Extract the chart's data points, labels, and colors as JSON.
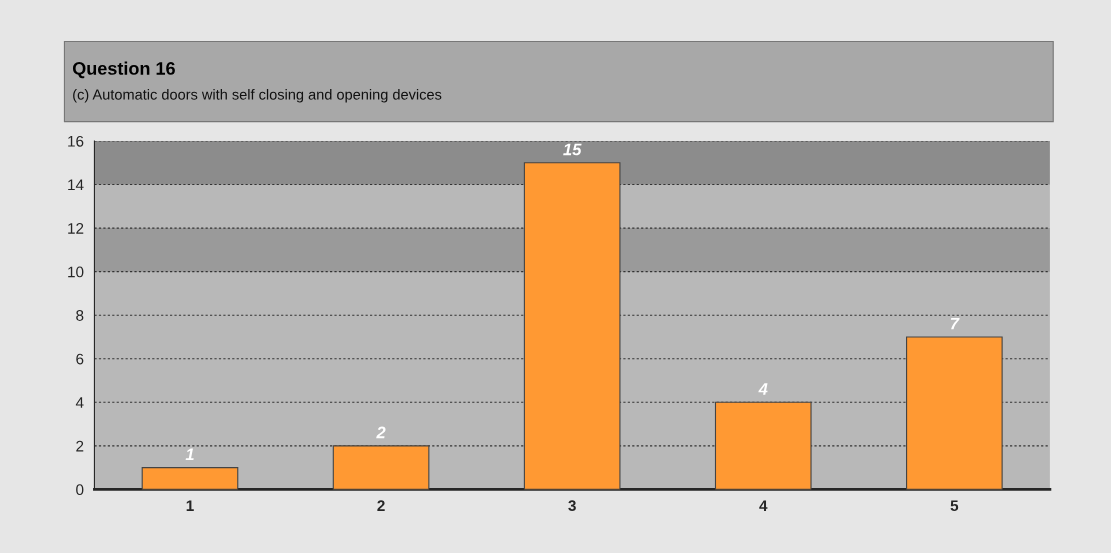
{
  "chart_data": {
    "type": "bar",
    "title": "Question 16",
    "subtitle": "(c) Automatic doors with self closing and opening devices",
    "categories": [
      "1",
      "2",
      "3",
      "4",
      "5"
    ],
    "values": [
      1,
      2,
      15,
      4,
      7
    ],
    "color": "#ff9933",
    "ylim": [
      0,
      16
    ],
    "yticks": [
      0,
      2,
      4,
      6,
      8,
      10,
      12,
      14,
      16
    ],
    "grid": "y",
    "data_labels": true,
    "bands": [
      {
        "axis": "y",
        "from": 10,
        "to": 12,
        "color": "#9a9a9a"
      },
      {
        "axis": "y",
        "from": 14,
        "to": 16,
        "color": "#8c8c8c"
      }
    ]
  }
}
